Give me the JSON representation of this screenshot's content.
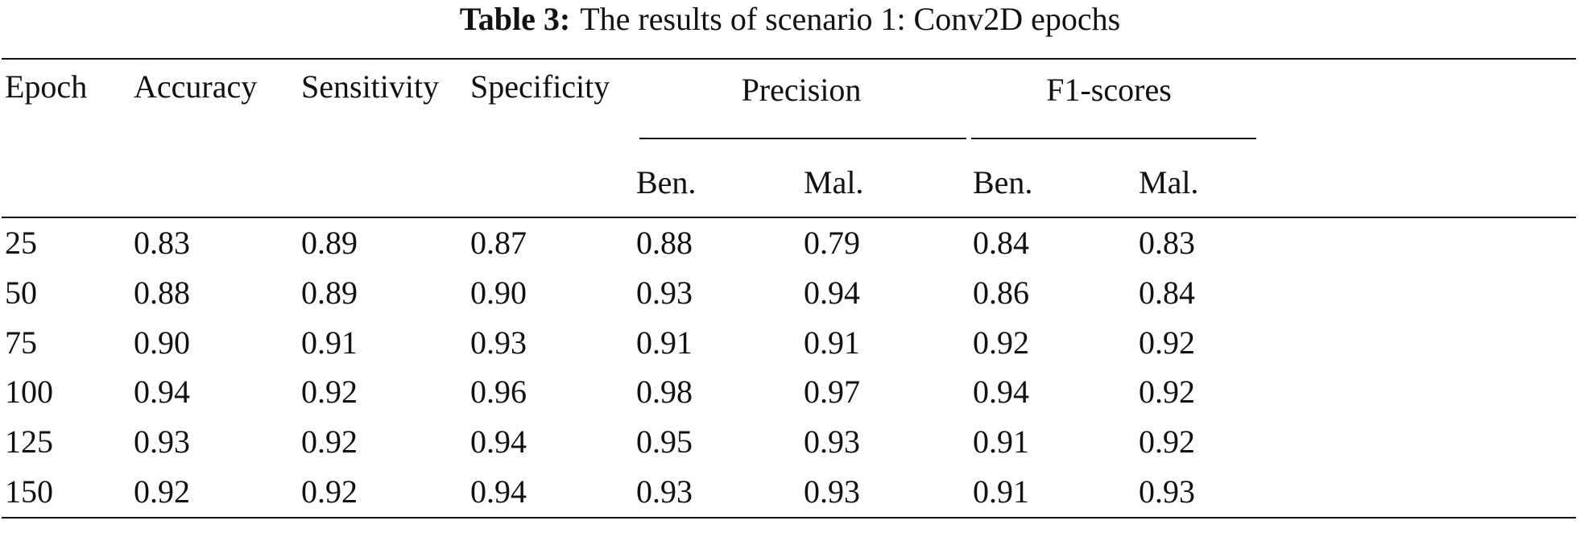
{
  "caption": {
    "label": "Table 3:",
    "text": "The results of scenario 1: Conv2D epochs"
  },
  "table": {
    "headers": {
      "epoch": "Epoch",
      "accuracy": "Accuracy",
      "sensitivity": "Sensitivity",
      "specificity": "Specificity",
      "precision": "Precision",
      "f1": "F1-scores",
      "precision_ben": "Ben.",
      "precision_mal": "Mal.",
      "f1_ben": "Ben.",
      "f1_mal": "Mal."
    },
    "rows": [
      [
        "25",
        "0.83",
        "0.89",
        "0.87",
        "0.88",
        "0.79",
        "0.84",
        "0.83"
      ],
      [
        "50",
        "0.88",
        "0.89",
        "0.90",
        "0.93",
        "0.94",
        "0.86",
        "0.84"
      ],
      [
        "75",
        "0.90",
        "0.91",
        "0.93",
        "0.91",
        "0.91",
        "0.92",
        "0.92"
      ],
      [
        "100",
        "0.94",
        "0.92",
        "0.96",
        "0.98",
        "0.97",
        "0.94",
        "0.92"
      ],
      [
        "125",
        "0.93",
        "0.92",
        "0.94",
        "0.95",
        "0.93",
        "0.91",
        "0.92"
      ],
      [
        "150",
        "0.92",
        "0.92",
        "0.94",
        "0.93",
        "0.93",
        "0.91",
        "0.93"
      ]
    ]
  }
}
